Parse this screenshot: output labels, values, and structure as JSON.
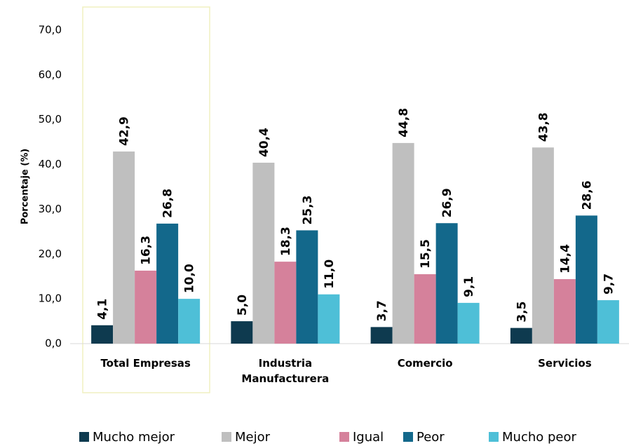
{
  "chart_data": {
    "type": "bar",
    "y_label": "Porcentaje (%)",
    "categories": [
      "Total Empresas",
      "Industria Manufacturera",
      "Comercio",
      "Servicios"
    ],
    "series": [
      {
        "name": "Mucho mejor",
        "color": "#0e3a4f",
        "values": [
          4.1,
          5.0,
          3.7,
          3.5
        ],
        "value_labels": [
          "4,1",
          "5,0",
          "3,7",
          "3,5"
        ]
      },
      {
        "name": "Mejor",
        "color": "#bfbfbf",
        "values": [
          42.9,
          40.4,
          44.8,
          43.8
        ],
        "value_labels": [
          "42,9",
          "40,4",
          "44,8",
          "43,8"
        ]
      },
      {
        "name": "Igual",
        "color": "#d5819b",
        "values": [
          16.3,
          18.3,
          15.5,
          14.4
        ],
        "value_labels": [
          "16,3",
          "18,3",
          "15,5",
          "14,4"
        ]
      },
      {
        "name": "Peor",
        "color": "#13688b",
        "values": [
          26.8,
          25.3,
          26.9,
          28.6
        ],
        "value_labels": [
          "26,8",
          "25,3",
          "26,9",
          "28,6"
        ]
      },
      {
        "name": "Mucho peor",
        "color": "#4ebfd7",
        "values": [
          10.0,
          11.0,
          9.1,
          9.7
        ],
        "value_labels": [
          "10,0",
          "11,0",
          "9,1",
          "9,7"
        ]
      }
    ],
    "ylim": [
      0,
      70
    ],
    "yticks": [
      {
        "value": 0,
        "label": "0,0"
      },
      {
        "value": 10,
        "label": "10,0"
      },
      {
        "value": 20,
        "label": "20,0"
      },
      {
        "value": 30,
        "label": "30,0"
      },
      {
        "value": 40,
        "label": "40,0"
      },
      {
        "value": 50,
        "label": "50,0"
      },
      {
        "value": 60,
        "label": "60,0"
      },
      {
        "value": 70,
        "label": "70,0"
      }
    ],
    "grid": false,
    "legend": "bottom"
  }
}
